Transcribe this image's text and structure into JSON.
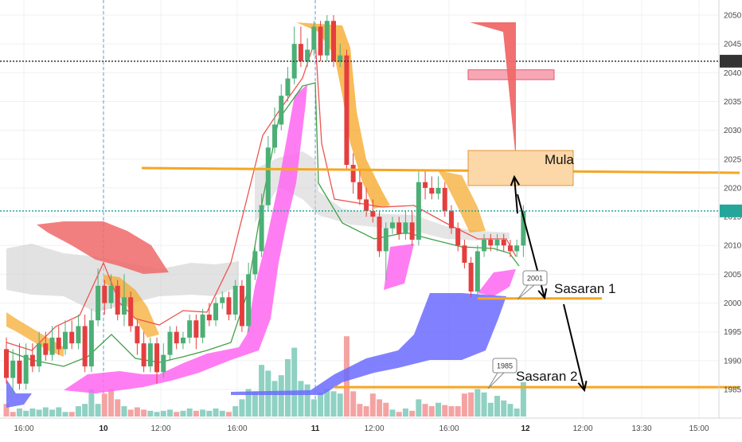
{
  "chart_data": {
    "type": "candlestick",
    "title": "",
    "y_axis": {
      "ticks": [
        1985,
        1990,
        1995,
        2000,
        2005,
        2010,
        2015,
        2020,
        2025,
        2030,
        2035,
        2040,
        2045,
        2050
      ],
      "ylim": [
        1982.2,
        2052.5
      ],
      "position": "right"
    },
    "x_axis": {
      "ticks": [
        {
          "label": "16:00",
          "bold": false
        },
        {
          "label": "10",
          "bold": true
        },
        {
          "label": "12:00",
          "bold": false
        },
        {
          "label": "16:00",
          "bold": false
        },
        {
          "label": "11",
          "bold": true
        },
        {
          "label": "12:00",
          "bold": false
        },
        {
          "label": "16:00",
          "bold": false
        },
        {
          "label": "12",
          "bold": true
        },
        {
          "label": "12:00",
          "bold": false
        },
        {
          "label": "13:30",
          "bold": false
        },
        {
          "label": "15:00",
          "bold": false
        }
      ]
    },
    "price_tags": [
      {
        "value": 2042,
        "label": "2042",
        "color": "#333333",
        "line_style": "dotted"
      },
      {
        "value": 2016,
        "label": "2016",
        "color": "#26a69a",
        "line_style": "dotted"
      }
    ],
    "candles": [
      [
        1992,
        1987,
        1994,
        1986
      ],
      [
        1987,
        1990,
        1992,
        1984
      ],
      [
        1990,
        1986,
        1993,
        1985
      ],
      [
        1986,
        1991,
        1993,
        1985
      ],
      [
        1991,
        1989,
        1993,
        1988
      ],
      [
        1989,
        1993,
        1995,
        1988
      ],
      [
        1993,
        1991,
        1995,
        1990
      ],
      [
        1991,
        1994,
        1996,
        1990
      ],
      [
        1994,
        1992,
        1996,
        1991
      ],
      [
        1992,
        1995,
        1997,
        1991
      ],
      [
        1995,
        1993,
        1997,
        1992
      ],
      [
        1993,
        1996,
        1998,
        1992
      ],
      [
        1996,
        1989,
        1998,
        1988
      ],
      [
        1989,
        1997,
        1999,
        1988
      ],
      [
        1997,
        2003,
        2006,
        1996
      ],
      [
        2003,
        2000,
        2004,
        1998
      ],
      [
        2000,
        2003,
        2005,
        1999
      ],
      [
        2003,
        1998,
        2004,
        1997
      ],
      [
        1998,
        2001,
        2005,
        1996
      ],
      [
        2001,
        1996,
        2002,
        1995
      ],
      [
        1996,
        1993,
        1997,
        1991
      ],
      [
        1993,
        1989,
        1995,
        1988
      ],
      [
        1989,
        1993,
        1994,
        1988
      ],
      [
        1993,
        1988,
        1994,
        1986
      ],
      [
        1988,
        1991,
        1993,
        1987
      ],
      [
        1991,
        1995,
        1996,
        1990
      ],
      [
        1995,
        1993,
        1996,
        1992
      ],
      [
        1993,
        1994,
        1995,
        1992
      ],
      [
        1994,
        1997,
        1998,
        1993
      ],
      [
        1997,
        1994,
        1998,
        1992
      ],
      [
        1994,
        1998,
        1999,
        1993
      ],
      [
        1998,
        1997,
        2000,
        1996
      ],
      [
        1997,
        2000,
        2001,
        1996
      ],
      [
        2000,
        2001,
        2002,
        1999
      ],
      [
        2001,
        1998,
        2002,
        1997
      ],
      [
        1998,
        2003,
        2004,
        1997
      ],
      [
        2003,
        1996,
        2004,
        1995
      ],
      [
        1996,
        2005,
        2007,
        1995
      ],
      [
        2005,
        2009,
        2010,
        2004
      ],
      [
        2009,
        2017,
        2019,
        2008
      ],
      [
        2017,
        2027,
        2029,
        2016
      ],
      [
        2027,
        2031,
        2034,
        2026
      ],
      [
        2031,
        2036,
        2038,
        2030
      ],
      [
        2036,
        2039,
        2041,
        2035
      ],
      [
        2039,
        2045,
        2048,
        2038
      ],
      [
        2045,
        2042,
        2048,
        2041
      ],
      [
        2042,
        2044,
        2046,
        2041
      ],
      [
        2044,
        2048,
        2049,
        2043
      ],
      [
        2048,
        2043,
        2049,
        2042
      ],
      [
        2043,
        2049,
        2050,
        2042
      ],
      [
        2049,
        2042,
        2050,
        2041
      ],
      [
        2042,
        2043,
        2045,
        2041
      ],
      [
        2043,
        2024,
        2044,
        2023
      ],
      [
        2024,
        2021,
        2026,
        2019
      ],
      [
        2021,
        2018,
        2023,
        2017
      ],
      [
        2018,
        2016,
        2020,
        2015
      ],
      [
        2016,
        2015,
        2018,
        2014
      ],
      [
        2015,
        2009,
        2016,
        2008
      ],
      [
        2009,
        2013,
        2014,
        2004
      ],
      [
        2013,
        2014,
        2015,
        2012
      ],
      [
        2014,
        2012,
        2015,
        2011
      ],
      [
        2012,
        2014,
        2016,
        2011
      ],
      [
        2014,
        2011,
        2016,
        2010
      ],
      [
        2011,
        2021,
        2023,
        2010
      ],
      [
        2021,
        2020,
        2023,
        2018
      ],
      [
        2020,
        2019,
        2022,
        2018
      ],
      [
        2019,
        2020,
        2022,
        2018
      ],
      [
        2020,
        2016,
        2021,
        2015
      ],
      [
        2016,
        2013,
        2017,
        2012
      ],
      [
        2013,
        2010,
        2014,
        2009
      ],
      [
        2010,
        2007,
        2011,
        2006
      ],
      [
        2007,
        2002,
        2008,
        2001
      ],
      [
        2002,
        2009,
        2010,
        2001
      ],
      [
        2009,
        2011,
        2012,
        2008
      ],
      [
        2011,
        2010,
        2012,
        2009
      ],
      [
        2010,
        2011,
        2012,
        2009
      ],
      [
        2011,
        2010,
        2012,
        2009
      ],
      [
        2010,
        2009,
        2011,
        2008
      ],
      [
        2009,
        2010,
        2011,
        2008
      ],
      [
        2010,
        2016,
        2017,
        2008
      ]
    ],
    "volume": [
      {
        "v": 22,
        "up": false
      },
      {
        "v": 8,
        "up": false
      },
      {
        "v": 14,
        "up": true
      },
      {
        "v": 10,
        "up": true
      },
      {
        "v": 14,
        "up": true
      },
      {
        "v": 12,
        "up": true
      },
      {
        "v": 16,
        "up": true
      },
      {
        "v": 12,
        "up": true
      },
      {
        "v": 16,
        "up": true
      },
      {
        "v": 8,
        "up": true
      },
      {
        "v": 8,
        "up": false
      },
      {
        "v": 18,
        "up": true
      },
      {
        "v": 22,
        "up": true
      },
      {
        "v": 48,
        "up": true
      },
      {
        "v": 22,
        "up": true
      },
      {
        "v": 40,
        "up": false
      },
      {
        "v": 48,
        "up": false
      },
      {
        "v": 30,
        "up": false
      },
      {
        "v": 18,
        "up": true
      },
      {
        "v": 12,
        "up": false
      },
      {
        "v": 16,
        "up": false
      },
      {
        "v": 12,
        "up": false
      },
      {
        "v": 10,
        "up": true
      },
      {
        "v": 8,
        "up": true
      },
      {
        "v": 10,
        "up": true
      },
      {
        "v": 12,
        "up": true
      },
      {
        "v": 8,
        "up": false
      },
      {
        "v": 10,
        "up": true
      },
      {
        "v": 14,
        "up": true
      },
      {
        "v": 10,
        "up": false
      },
      {
        "v": 12,
        "up": true
      },
      {
        "v": 10,
        "up": true
      },
      {
        "v": 14,
        "up": true
      },
      {
        "v": 10,
        "up": true
      },
      {
        "v": 8,
        "up": false
      },
      {
        "v": 18,
        "up": true
      },
      {
        "v": 30,
        "up": true
      },
      {
        "v": 48,
        "up": true
      },
      {
        "v": 44,
        "up": true
      },
      {
        "v": 90,
        "up": true
      },
      {
        "v": 80,
        "up": true
      },
      {
        "v": 62,
        "up": true
      },
      {
        "v": 72,
        "up": true
      },
      {
        "v": 100,
        "up": true
      },
      {
        "v": 120,
        "up": true
      },
      {
        "v": 62,
        "up": true
      },
      {
        "v": 56,
        "up": true
      },
      {
        "v": 30,
        "up": true
      },
      {
        "v": 42,
        "up": true
      },
      {
        "v": 48,
        "up": true
      },
      {
        "v": 44,
        "up": true
      },
      {
        "v": 40,
        "up": true
      },
      {
        "v": 140,
        "up": false
      },
      {
        "v": 44,
        "up": false
      },
      {
        "v": 22,
        "up": false
      },
      {
        "v": 18,
        "up": false
      },
      {
        "v": 40,
        "up": false
      },
      {
        "v": 30,
        "up": false
      },
      {
        "v": 24,
        "up": false
      },
      {
        "v": 12,
        "up": true
      },
      {
        "v": 8,
        "up": false
      },
      {
        "v": 14,
        "up": true
      },
      {
        "v": 10,
        "up": false
      },
      {
        "v": 30,
        "up": true
      },
      {
        "v": 22,
        "up": false
      },
      {
        "v": 18,
        "up": false
      },
      {
        "v": 24,
        "up": true
      },
      {
        "v": 20,
        "up": false
      },
      {
        "v": 18,
        "up": false
      },
      {
        "v": 18,
        "up": false
      },
      {
        "v": 40,
        "up": false
      },
      {
        "v": 42,
        "up": false
      },
      {
        "v": 48,
        "up": true
      },
      {
        "v": 42,
        "up": true
      },
      {
        "v": 24,
        "up": true
      },
      {
        "v": 36,
        "up": true
      },
      {
        "v": 28,
        "up": true
      },
      {
        "v": 22,
        "up": true
      },
      {
        "v": 14,
        "up": true
      },
      {
        "v": 60,
        "up": true
      }
    ],
    "annotations": [
      {
        "name": "mula-label",
        "text": "Mula"
      },
      {
        "name": "sasaran-1-label",
        "text": "Sasaran 1"
      },
      {
        "name": "sasaran-2-label",
        "text": "Sasaran 2"
      },
      {
        "name": "bubble-2001",
        "text": "2001"
      },
      {
        "name": "bubble-1985",
        "text": "1985"
      }
    ],
    "colors": {
      "up": "#4caf76",
      "down": "#e53e3e",
      "volume_up": "#8fd1c3",
      "volume_down": "#f4a3a3",
      "line_red": "#ef5350",
      "line_green": "#43a047",
      "orange": "#f5a623",
      "magenta": "#ff66f0",
      "blue": "#6b6bff",
      "salmon": "#f06868",
      "pink_box": "#f7a6b4",
      "mula_box": "#fcd7a8",
      "cloud_gray": "#cfcfcf",
      "teal": "#26a69a"
    }
  }
}
